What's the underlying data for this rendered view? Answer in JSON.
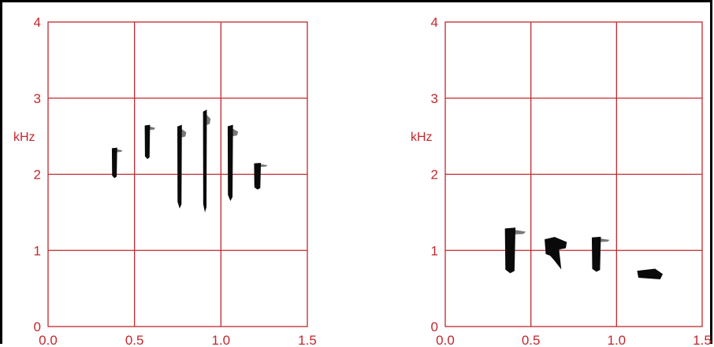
{
  "chart_data": [
    {
      "type": "spectrogram",
      "xlabel": "",
      "ylabel": "kHz",
      "xlim": [
        0,
        1.5
      ],
      "ylim": [
        0,
        4
      ],
      "x_ticks": [
        "0.0",
        "0.5",
        "1.0",
        "1.5"
      ],
      "y_ticks": [
        "0",
        "1",
        "2",
        "3",
        "4"
      ],
      "grid": true,
      "grid_color": "#c0282e",
      "ink_color": "#0a0a0a",
      "notes": [
        {
          "t_start": 0.36,
          "t_end": 0.43,
          "f_low": 1.95,
          "f_high": 2.35
        },
        {
          "t_start": 0.55,
          "t_end": 0.62,
          "f_low": 2.2,
          "f_high": 2.65
        },
        {
          "t_start": 0.74,
          "t_end": 0.8,
          "f_low": 1.55,
          "f_high": 2.65
        },
        {
          "t_start": 0.89,
          "t_end": 0.94,
          "f_low": 1.5,
          "f_high": 2.85
        },
        {
          "t_start": 1.03,
          "t_end": 1.1,
          "f_low": 1.65,
          "f_high": 2.65
        },
        {
          "t_start": 1.18,
          "t_end": 1.27,
          "f_low": 1.8,
          "f_high": 2.15
        }
      ]
    },
    {
      "type": "spectrogram",
      "xlabel": "",
      "ylabel": "kHz",
      "xlim": [
        0,
        1.5
      ],
      "ylim": [
        0,
        4
      ],
      "x_ticks": [
        "0.0",
        "0.5",
        "1.0",
        "1.5"
      ],
      "y_ticks": [
        "0",
        "1",
        "2",
        "3",
        "4"
      ],
      "grid": true,
      "grid_color": "#c0282e",
      "ink_color": "#0a0a0a",
      "notes": [
        {
          "t_start": 0.33,
          "t_end": 0.47,
          "f_low": 0.7,
          "f_high": 1.3
        },
        {
          "t_start": 0.58,
          "t_end": 0.71,
          "f_low": 0.75,
          "f_high": 1.2
        },
        {
          "t_start": 0.84,
          "t_end": 0.96,
          "f_low": 0.72,
          "f_high": 1.18
        },
        {
          "t_start": 1.12,
          "t_end": 1.27,
          "f_low": 0.62,
          "f_high": 0.76
        }
      ]
    }
  ]
}
